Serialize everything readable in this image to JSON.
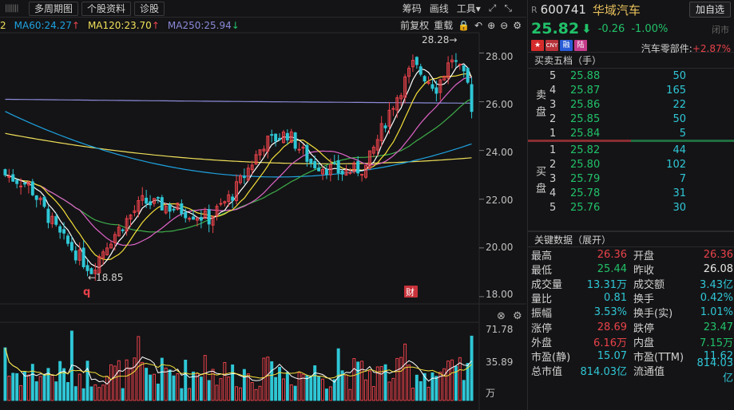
{
  "toolbar": {
    "period_label": "多周期图",
    "profile_label": "个股资料",
    "diagnose_label": "诊股",
    "chips_label": "筹码",
    "draw_label": "画线",
    "tools_label": "工具",
    "tools_arrow": "▾"
  },
  "ma_line": {
    "lead": "2",
    "ma60": "MA60:24.27",
    "ma120": "MA120:23.70",
    "ma250": "MA250:25.94",
    "fq_label": "前复权",
    "overlay_label": "重载"
  },
  "colors": {
    "up": "#e8424a",
    "down": "#2fc7d6",
    "green": "#21c169",
    "ma5": "#ffffff",
    "ma10": "#f5e03a",
    "ma20": "#e064c8",
    "ma30": "#3fae4a",
    "ma60": "#1ea2e0",
    "ma120": "#f0e05a",
    "ma250": "#8a8ad8"
  },
  "chart_data": {
    "type": "candlestick",
    "y_axis": [
      "28.00",
      "26.00",
      "24.00",
      "22.00",
      "20.00",
      "18.00"
    ],
    "ylim": [
      17.8,
      28.8
    ],
    "high_label": "28.28→",
    "low_label": "←18.85",
    "high_value": 28.28,
    "low_value": 18.85,
    "marker_q": "q",
    "marker_fin": "财",
    "volume_axis": [
      "71.78",
      "35.89",
      "万"
    ],
    "volume_max": 71.78
  },
  "header": {
    "r_flag": "R",
    "code": "600741",
    "name": "华域汽车",
    "add_button": "加自选",
    "price": "25.82",
    "price_arrow": "⬇",
    "change": "-0.26",
    "change_pct": "-1.00%",
    "status": "闭市",
    "tags": [
      "",
      "CNY",
      "融",
      "陆"
    ],
    "sector_name": "汽车零部件:",
    "sector_pct": "+2.87%"
  },
  "orderbook": {
    "title": "买卖五档（手）",
    "sell_side_label": "卖盘",
    "buy_side_label": "买盘",
    "asks": [
      {
        "level": "5",
        "price": "25.88",
        "vol": "50"
      },
      {
        "level": "4",
        "price": "25.87",
        "vol": "165"
      },
      {
        "level": "3",
        "price": "25.86",
        "vol": "22"
      },
      {
        "level": "2",
        "price": "25.85",
        "vol": "50"
      },
      {
        "level": "1",
        "price": "25.84",
        "vol": "5"
      }
    ],
    "bids": [
      {
        "level": "1",
        "price": "25.82",
        "vol": "44"
      },
      {
        "level": "2",
        "price": "25.80",
        "vol": "102"
      },
      {
        "level": "3",
        "price": "25.79",
        "vol": "7"
      },
      {
        "level": "4",
        "price": "25.78",
        "vol": "31"
      },
      {
        "level": "5",
        "price": "25.76",
        "vol": "30"
      }
    ]
  },
  "keydata": {
    "title": "关键数据（展开）",
    "rows": [
      {
        "l1": "最高",
        "v1": "26.36",
        "c1": "red",
        "l2": "开盘",
        "v2": "26.36",
        "c2": "red"
      },
      {
        "l1": "最低",
        "v1": "25.44",
        "c1": "green",
        "l2": "昨收",
        "v2": "26.08",
        "c2": "white"
      },
      {
        "l1": "成交量",
        "v1": "13.31万",
        "c1": "cyan",
        "l2": "成交额",
        "v2": "3.43亿",
        "c2": "cyan"
      },
      {
        "l1": "量比",
        "v1": "0.81",
        "c1": "cyan",
        "l2": "换手",
        "v2": "0.42%",
        "c2": "cyan"
      },
      {
        "l1": "振幅",
        "v1": "3.53%",
        "c1": "cyan",
        "l2": "换手(实)",
        "v2": "1.01%",
        "c2": "cyan"
      },
      {
        "l1": "涨停",
        "v1": "28.69",
        "c1": "red",
        "l2": "跌停",
        "v2": "23.47",
        "c2": "green"
      },
      {
        "l1": "外盘",
        "v1": "6.16万",
        "c1": "red",
        "l2": "内盘",
        "v2": "7.15万",
        "c2": "green"
      },
      {
        "l1": "市盈(静)",
        "v1": "15.07",
        "c1": "cyan",
        "l2": "市盈(TTM)",
        "v2": "11.62",
        "c2": "cyan"
      },
      {
        "l1": "总市值",
        "v1": "814.03亿",
        "c1": "cyan",
        "l2": "流通值",
        "v2": "814.03亿",
        "c2": "cyan"
      }
    ]
  }
}
